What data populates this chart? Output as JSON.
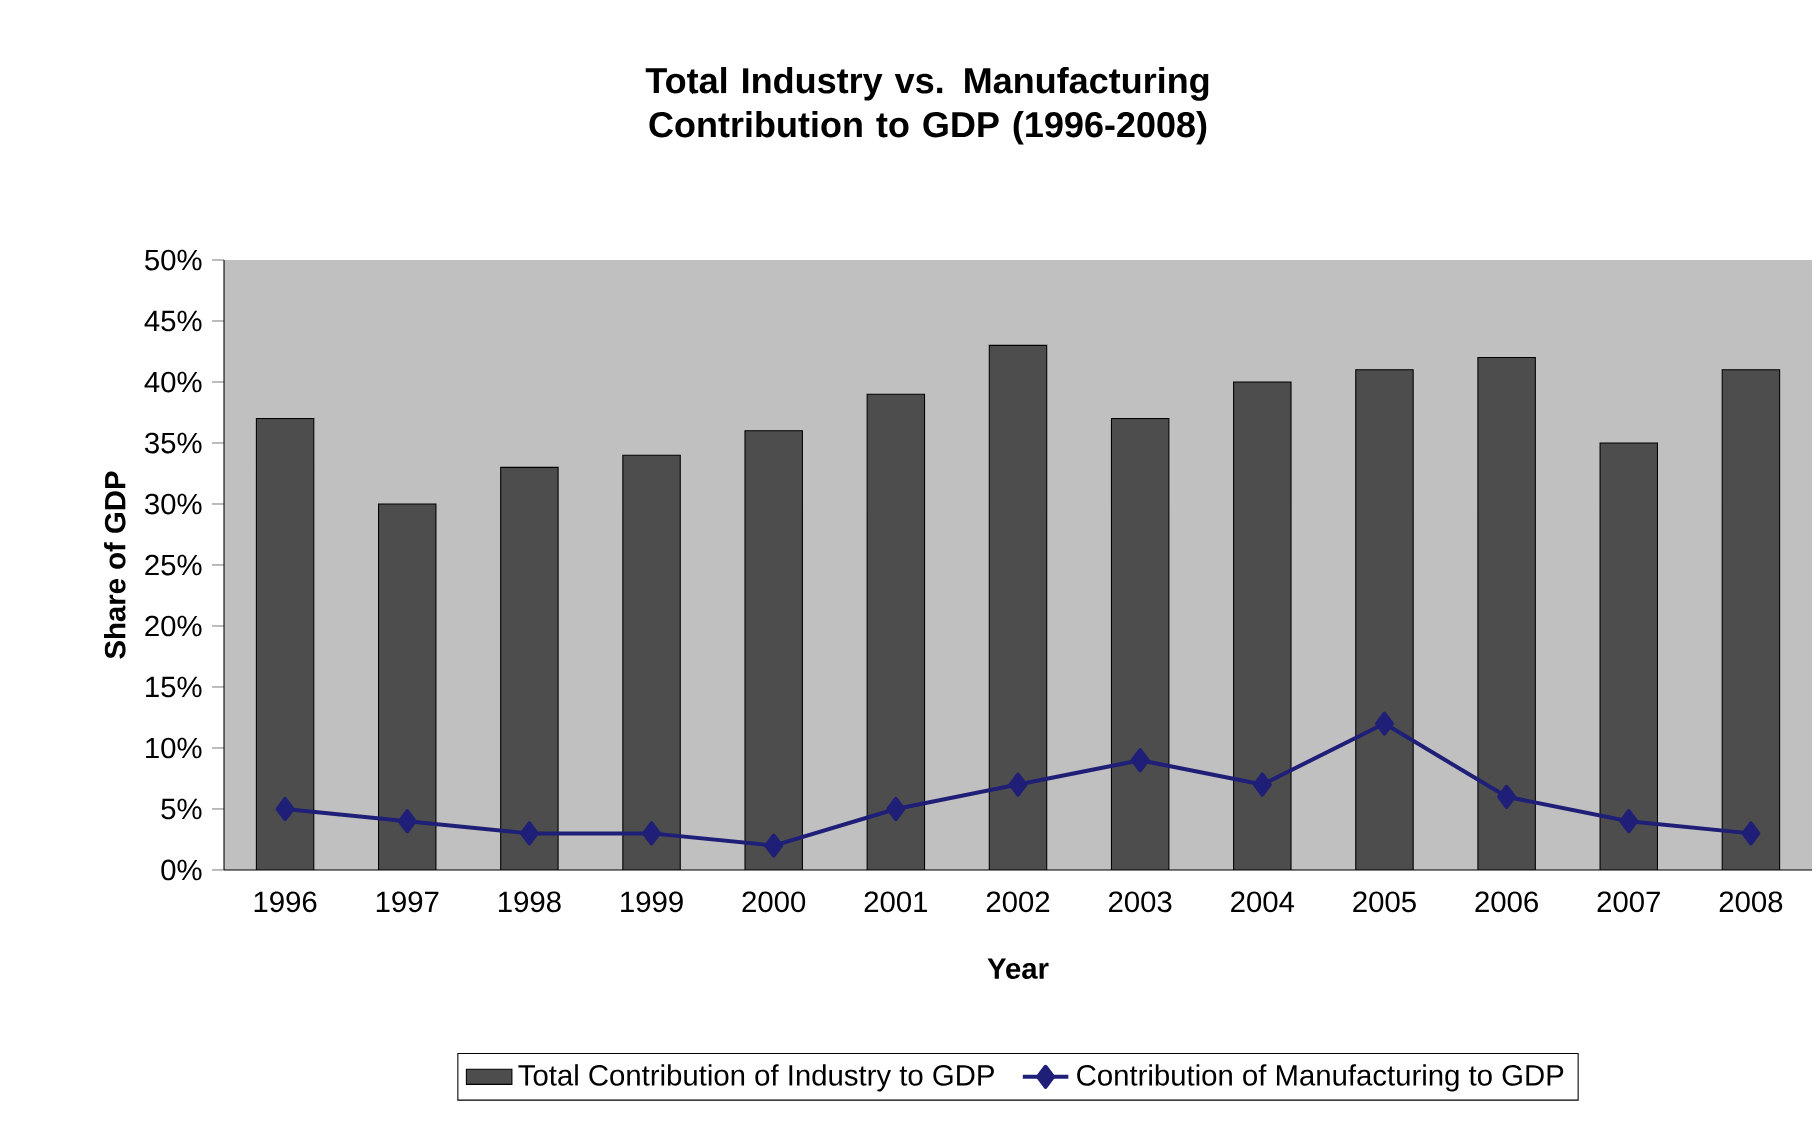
{
  "chart_data": {
    "type": "bar",
    "title": "Total Industry vs. Manufacturing Contribution to GDP (1996-2008)",
    "xlabel": "Year",
    "ylabel": "Share of GDP",
    "categories": [
      "1996",
      "1997",
      "1998",
      "1999",
      "2000",
      "2001",
      "2002",
      "2003",
      "2004",
      "2005",
      "2006",
      "2007",
      "2008"
    ],
    "series": [
      {
        "name": "Total Contribution of Industry to GDP",
        "color": "#4d4d4d",
        "values": [
          37,
          30,
          33,
          34,
          36,
          39,
          43,
          37,
          40,
          41,
          42,
          35,
          41
        ]
      },
      {
        "name": "Contribution of Manufacturing to GDP",
        "type": "line",
        "color": "#1f1f78",
        "marker": "diamond",
        "values": [
          5,
          4,
          3,
          3,
          2,
          5,
          7,
          9,
          7,
          12,
          6,
          4,
          3
        ]
      }
    ],
    "ylim": [
      0,
      50
    ],
    "yticks": [
      {
        "value": 0,
        "label": "0%"
      },
      {
        "value": 5,
        "label": "5%"
      },
      {
        "value": 10,
        "label": "10%"
      },
      {
        "value": 15,
        "label": "15%"
      },
      {
        "value": 20,
        "label": "20%"
      },
      {
        "value": 25,
        "label": "25%"
      },
      {
        "value": 30,
        "label": "30%"
      },
      {
        "value": 35,
        "label": "35%"
      },
      {
        "value": 40,
        "label": "40%"
      },
      {
        "value": 45,
        "label": "45%"
      },
      {
        "value": 50,
        "label": "50%"
      }
    ],
    "grid": false,
    "legend": "bottom"
  }
}
